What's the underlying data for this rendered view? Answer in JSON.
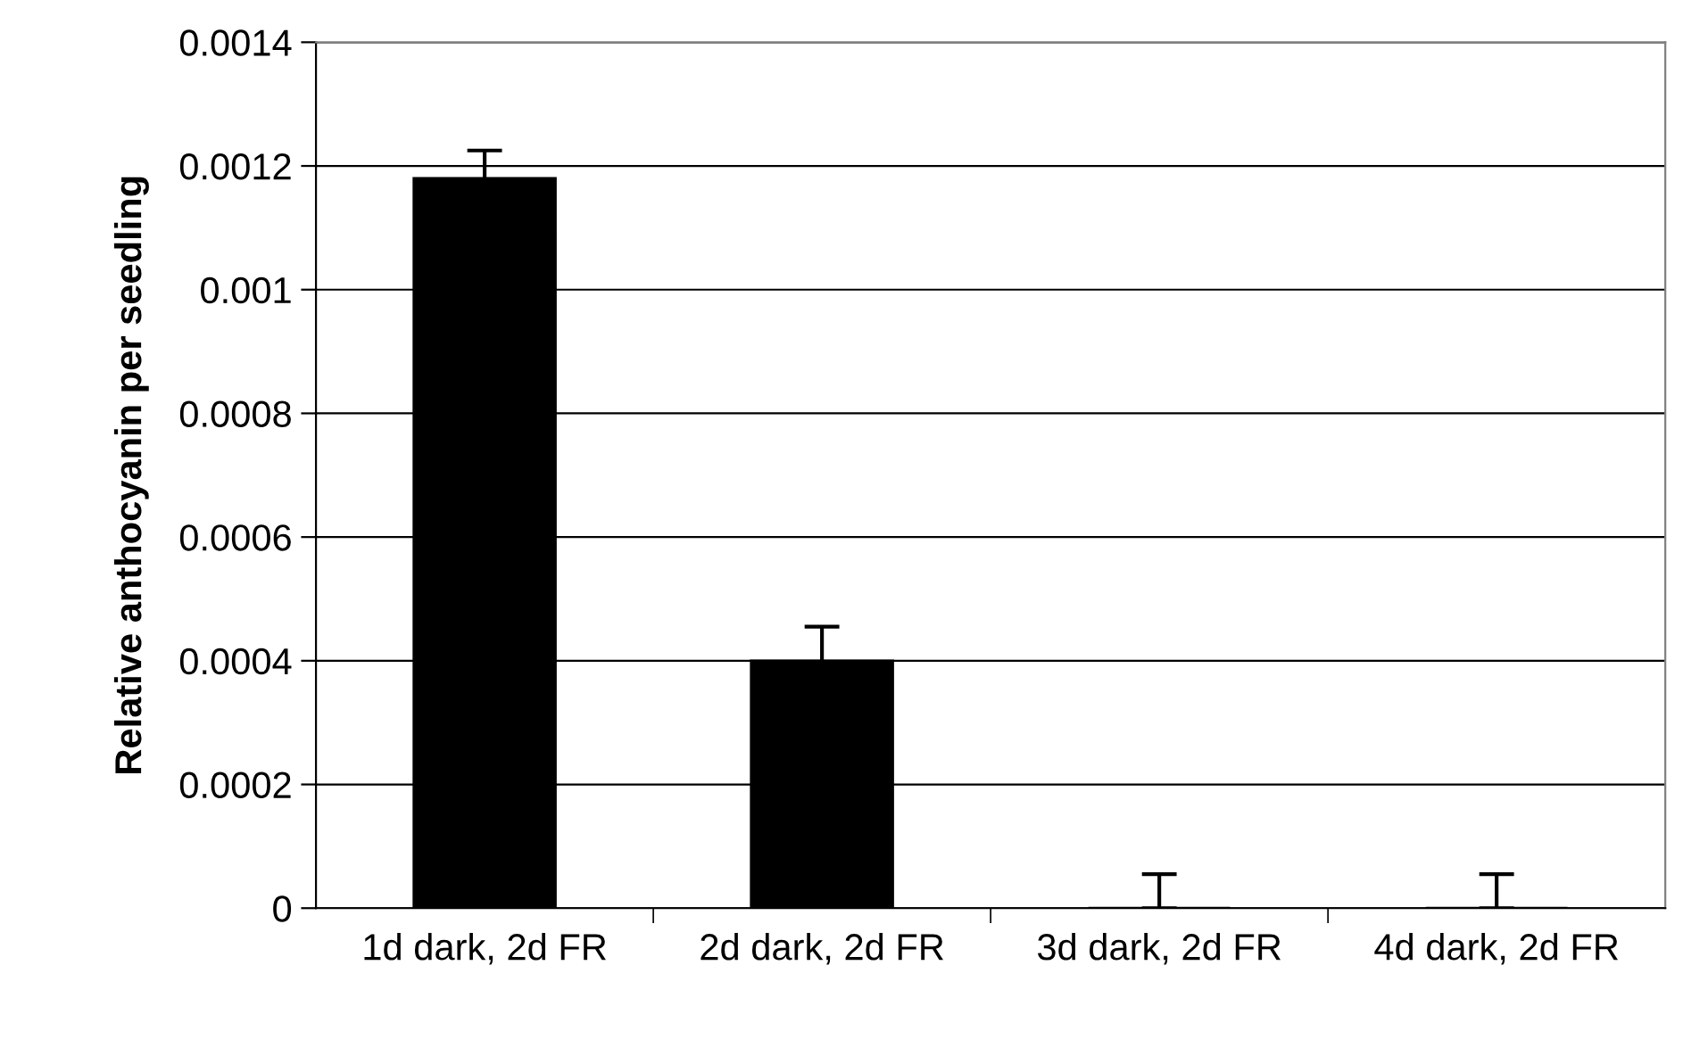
{
  "chart_data": {
    "type": "bar",
    "ylabel": "Relative anthocyanin per seedling",
    "categories": [
      "1d dark, 2d FR",
      "2d dark, 2d FR",
      "3d dark, 2d FR",
      "4d dark, 2d FR"
    ],
    "values": [
      0.00118,
      0.0004,
      0,
      0
    ],
    "color": "#000000",
    "errors": [
      4.5e-05,
      5.5e-05,
      [
        0,
        5.5e-05
      ],
      [
        0,
        5.5e-05
      ]
    ],
    "ylim": [
      0,
      0.0014
    ],
    "yticks": [
      0,
      0.0002,
      0.0004,
      0.0006,
      0.0008,
      0.001,
      0.0012,
      0.0014
    ],
    "grid": "y"
  }
}
